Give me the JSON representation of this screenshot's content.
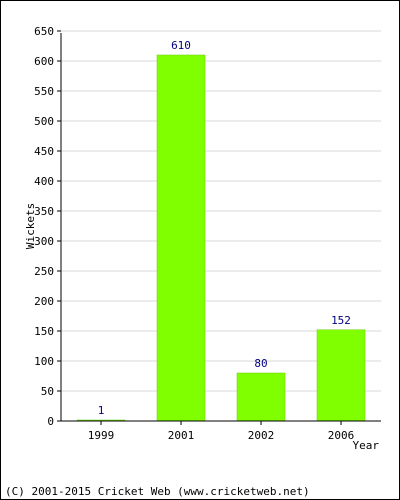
{
  "chart_data": {
    "type": "bar",
    "categories": [
      "1999",
      "2001",
      "2002",
      "2006"
    ],
    "values": [
      1,
      610,
      80,
      152
    ],
    "data_labels": [
      "1",
      "610",
      "80",
      "152"
    ],
    "title": "",
    "xlabel": "Year",
    "ylabel": "Wickets",
    "ylim": [
      0,
      650
    ],
    "yticks": [
      0,
      50,
      100,
      150,
      200,
      250,
      300,
      350,
      400,
      450,
      500,
      550,
      600,
      650
    ],
    "grid": true,
    "bar_color": "#80ff00",
    "bar_stroke_color": "#66cc00",
    "data_label_color": "#000080"
  },
  "footer": {
    "copyright": "(C) 2001-2015 Cricket Web (www.cricketweb.net)"
  }
}
